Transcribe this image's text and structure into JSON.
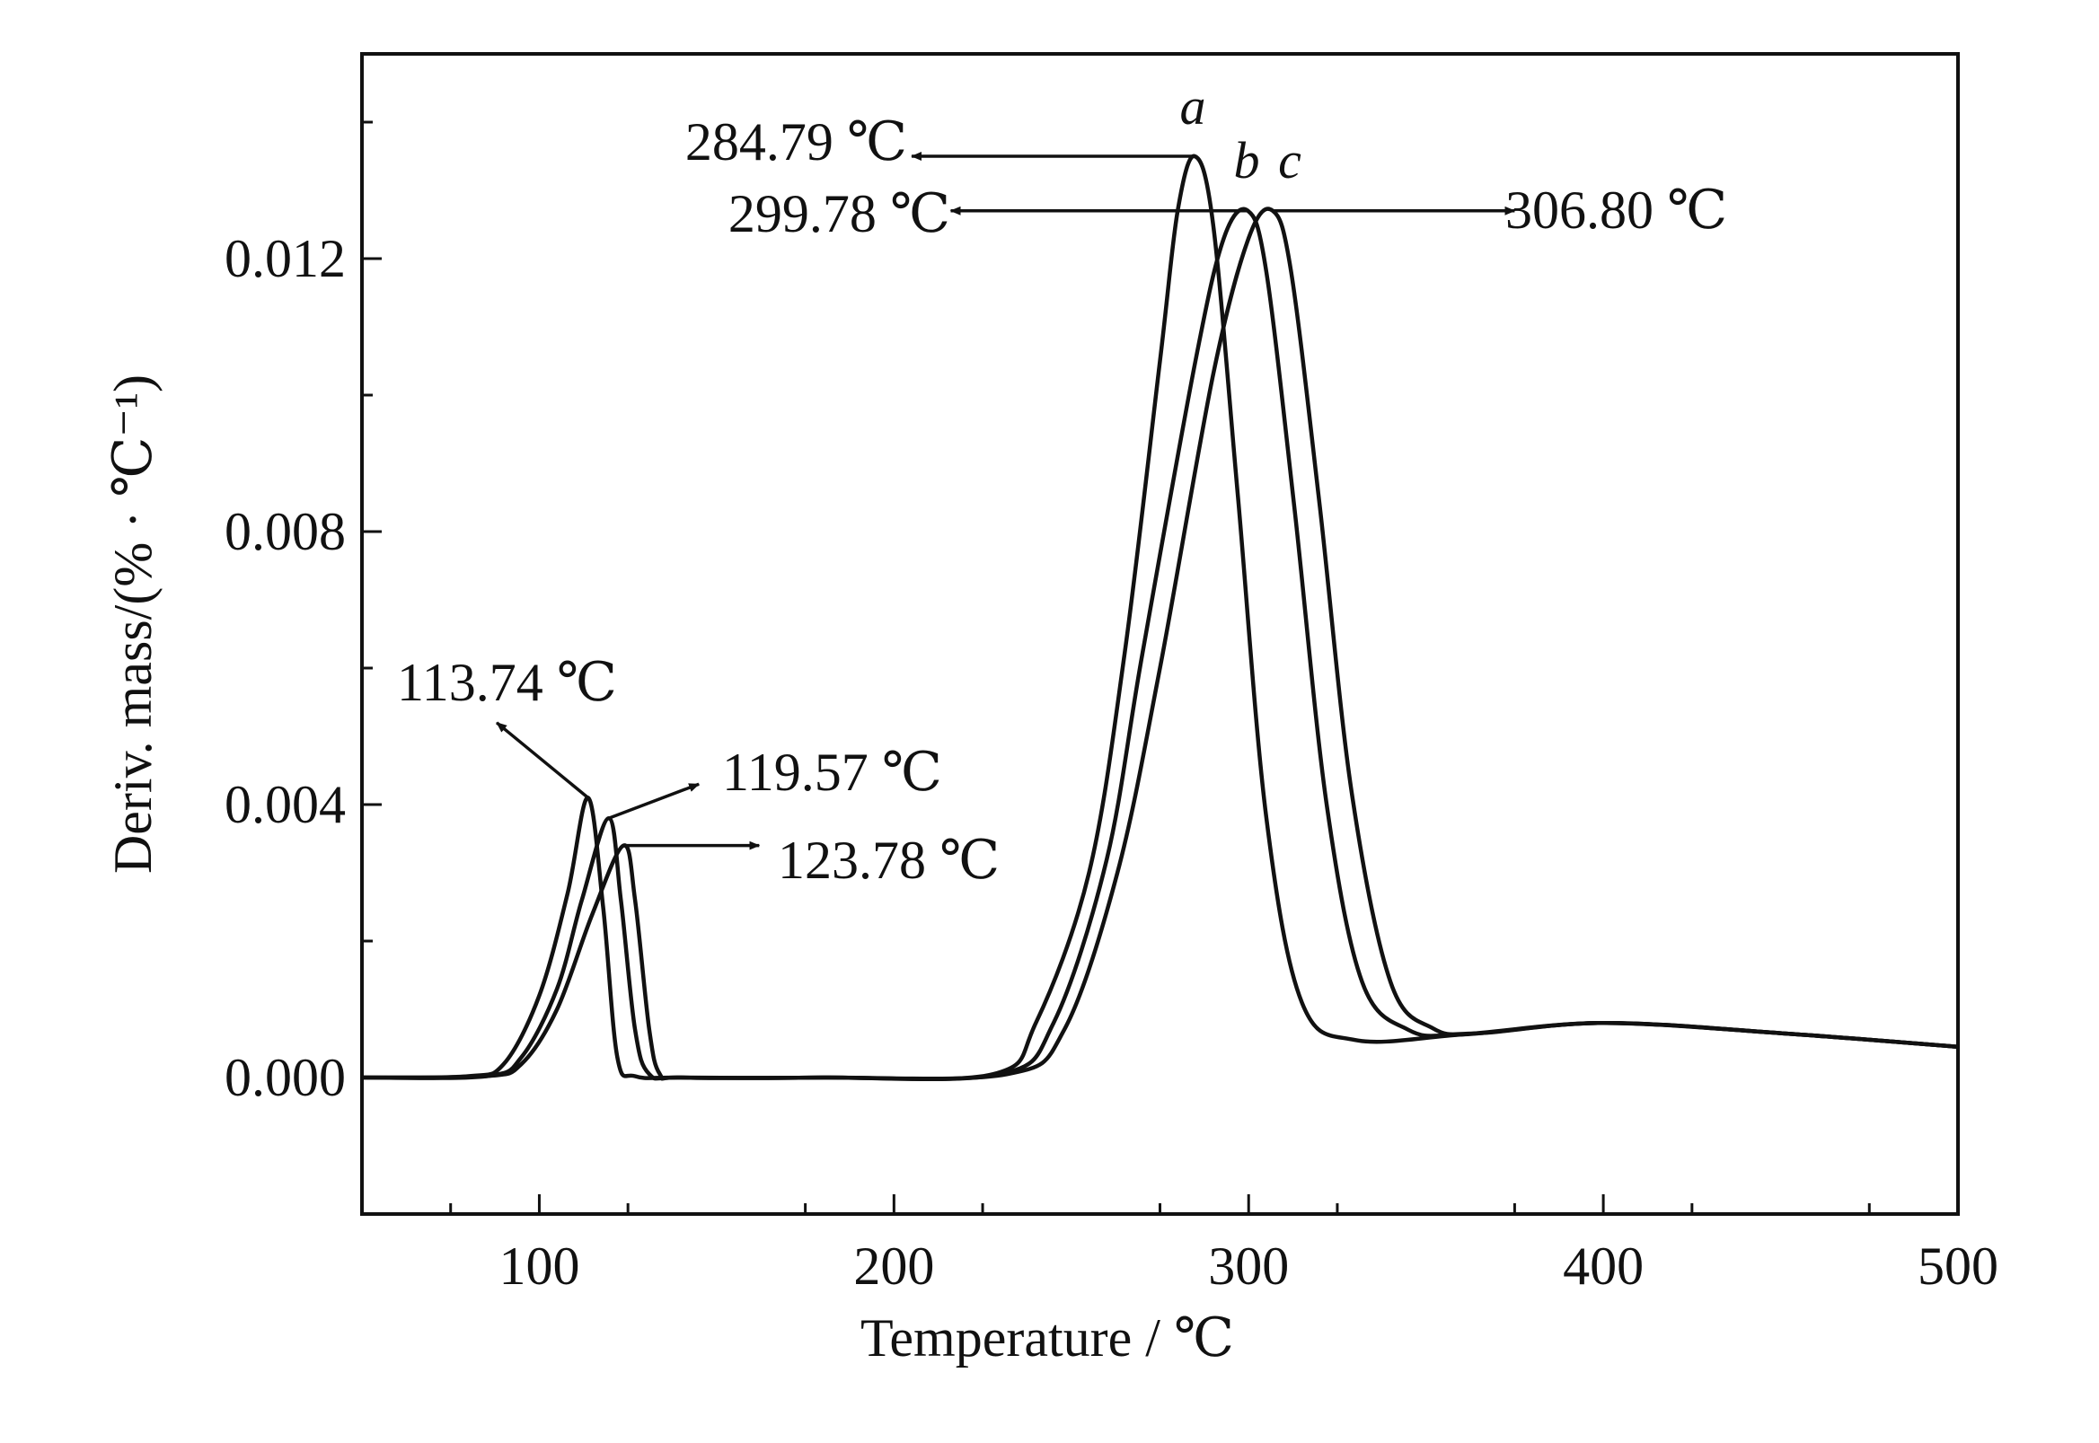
{
  "chart_data": {
    "type": "line",
    "xlabel": "Temperature / ℃",
    "ylabel": "Deriv. mass/(% · ℃⁻¹)",
    "xlim": [
      50,
      500
    ],
    "ylim": [
      -0.002,
      0.015
    ],
    "grid": false,
    "legend": "none",
    "xticks": [
      100,
      200,
      300,
      400,
      500
    ],
    "xtick_labels": [
      "100",
      "200",
      "300",
      "400",
      "500"
    ],
    "yticks": [
      0.0,
      0.004,
      0.008,
      0.012
    ],
    "ytick_labels": [
      "0.000",
      "0.004",
      "0.008",
      "0.012"
    ],
    "line_color": "#111111",
    "series": [
      {
        "label": "a",
        "points": [
          [
            50,
            0
          ],
          [
            80,
            2e-05
          ],
          [
            90,
            0.0002
          ],
          [
            100,
            0.0012
          ],
          [
            108,
            0.0027
          ],
          [
            113.74,
            0.0041
          ],
          [
            118,
            0.0025
          ],
          [
            122,
            0.0003
          ],
          [
            127,
            2e-05
          ],
          [
            140,
            0
          ],
          [
            180,
            0
          ],
          [
            228,
            5e-05
          ],
          [
            240,
            0.0008
          ],
          [
            255,
            0.003
          ],
          [
            265,
            0.0062
          ],
          [
            275,
            0.0105
          ],
          [
            280,
            0.0127
          ],
          [
            284.79,
            0.0135
          ],
          [
            290,
            0.0125
          ],
          [
            297,
            0.0085
          ],
          [
            305,
            0.0038
          ],
          [
            315,
            0.0011
          ],
          [
            330,
            0.00055
          ],
          [
            360,
            0.00063
          ],
          [
            400,
            0.0008
          ],
          [
            450,
            0.00065
          ],
          [
            500,
            0.00045
          ]
        ]
      },
      {
        "label": "b",
        "points": [
          [
            50,
            0
          ],
          [
            85,
            2e-05
          ],
          [
            95,
            0.0003
          ],
          [
            105,
            0.0013
          ],
          [
            112,
            0.0026
          ],
          [
            119.57,
            0.0038
          ],
          [
            123,
            0.0026
          ],
          [
            127,
            0.0007
          ],
          [
            131,
            5e-05
          ],
          [
            140,
            0
          ],
          [
            180,
            0
          ],
          [
            230,
            5e-05
          ],
          [
            245,
            0.0008
          ],
          [
            260,
            0.0032
          ],
          [
            270,
            0.0062
          ],
          [
            285,
            0.0105
          ],
          [
            293,
            0.0123
          ],
          [
            299.78,
            0.0127
          ],
          [
            305,
            0.0118
          ],
          [
            313,
            0.0083
          ],
          [
            322,
            0.004
          ],
          [
            332,
            0.0014
          ],
          [
            345,
            0.0007
          ],
          [
            360,
            0.00063
          ],
          [
            400,
            0.0008
          ],
          [
            450,
            0.00065
          ],
          [
            500,
            0.00045
          ]
        ]
      },
      {
        "label": "c",
        "points": [
          [
            50,
            0
          ],
          [
            85,
            2e-05
          ],
          [
            95,
            0.0002
          ],
          [
            105,
            0.001
          ],
          [
            115,
            0.0024
          ],
          [
            123.78,
            0.0034
          ],
          [
            127,
            0.0026
          ],
          [
            131,
            0.0007
          ],
          [
            134,
            5e-05
          ],
          [
            140,
            0
          ],
          [
            180,
            0
          ],
          [
            232,
            5e-05
          ],
          [
            248,
            0.0007
          ],
          [
            263,
            0.003
          ],
          [
            275,
            0.006
          ],
          [
            290,
            0.0103
          ],
          [
            300,
            0.0123
          ],
          [
            306.8,
            0.0127
          ],
          [
            312,
            0.0118
          ],
          [
            320,
            0.0084
          ],
          [
            329,
            0.0042
          ],
          [
            340,
            0.0014
          ],
          [
            352,
            0.00072
          ],
          [
            365,
            0.00065
          ],
          [
            400,
            0.0008
          ],
          [
            450,
            0.00065
          ],
          [
            500,
            0.00045
          ]
        ]
      }
    ],
    "annotations": [
      {
        "text": "284.79 ℃",
        "peak": [
          284.79,
          0.0135
        ],
        "target": [
          205,
          0.0135
        ]
      },
      {
        "text": "299.78 ℃",
        "peak": [
          299.78,
          0.0127
        ],
        "target": [
          216,
          0.0127
        ]
      },
      {
        "text": "306.80 ℃",
        "peak": [
          306.8,
          0.0127
        ],
        "target": [
          375,
          0.0127
        ]
      },
      {
        "text": "113.74 ℃",
        "peak": [
          113.74,
          0.0041
        ],
        "target": [
          88,
          0.0052
        ]
      },
      {
        "text": "119.57 ℃",
        "peak": [
          119.57,
          0.0038
        ],
        "target": [
          145,
          0.0043
        ]
      },
      {
        "text": "123.78 ℃",
        "peak": [
          123.78,
          0.0034
        ],
        "target": [
          162,
          0.0034
        ]
      }
    ]
  }
}
